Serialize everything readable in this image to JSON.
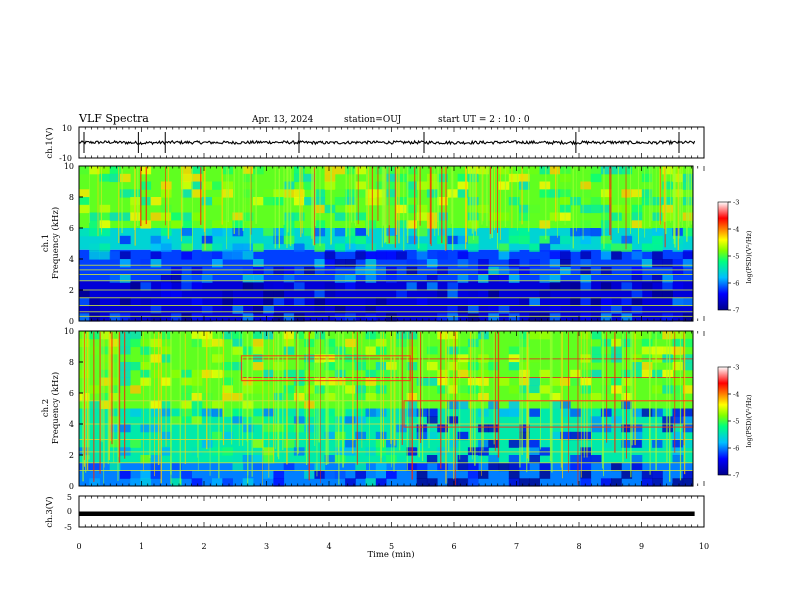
{
  "header": {
    "title": "VLF Spectra",
    "date": "Apr. 13, 2024",
    "station": "station=OUJ",
    "start_ut": "start  UT =   2  : 10 : 0"
  },
  "chart_data": [
    {
      "type": "line",
      "name": "ch1-waveform",
      "ylabel": "ch.1(V)",
      "ylim": [
        -10,
        10
      ],
      "yticks": [
        "10",
        "-10"
      ],
      "x": [
        0,
        0.5,
        1,
        1.5,
        2,
        2.5,
        3,
        3.5,
        4,
        4.5,
        5,
        5.5,
        6,
        6.5,
        7,
        7.5,
        8,
        8.5,
        9,
        9.5,
        9.85
      ],
      "y": [
        0,
        0.2,
        -0.3,
        0.1,
        0,
        -0.1,
        0.2,
        0,
        -0.2,
        0.1,
        0,
        0.1,
        -0.1,
        0,
        0.2,
        -0.1,
        0,
        0.1,
        -0.1,
        0,
        0
      ],
      "xlim": [
        0,
        10
      ]
    },
    {
      "type": "heatmap",
      "name": "ch1-spectrogram",
      "ylabel": "ch.1\nFrequency (kHz)",
      "ylim": [
        0,
        10
      ],
      "yticks": [
        "0",
        "2",
        "4",
        "6",
        "8",
        "10"
      ],
      "xlim": [
        0,
        10
      ],
      "colorbar": {
        "label": "log(PSD)(V²/Hz)",
        "range": [
          -7,
          -3
        ],
        "ticks": [
          "-3",
          "-4",
          "-5",
          "-6",
          "-7"
        ],
        "colors": [
          "#00008b",
          "#0000ff",
          "#00bfff",
          "#00ff7f",
          "#7fff00",
          "#ffff00",
          "#ff7f00",
          "#ff0000",
          "#ffffff"
        ]
      },
      "bands_khz": [
        {
          "from": 0,
          "to": 2.6,
          "level": -6.6
        },
        {
          "from": 2.6,
          "to": 4.6,
          "level": -6.2
        },
        {
          "from": 4.6,
          "to": 6.0,
          "level": -5.6
        },
        {
          "from": 6.0,
          "to": 10,
          "level": -4.9
        }
      ],
      "tone_lines_khz": [
        0.3,
        0.6,
        1.0,
        1.5,
        2.0,
        2.6,
        3.0,
        3.3,
        3.6
      ]
    },
    {
      "type": "heatmap",
      "name": "ch2-spectrogram",
      "ylabel": "ch.2\nFrequency (kHz)",
      "ylim": [
        0,
        10
      ],
      "yticks": [
        "0",
        "2",
        "4",
        "6",
        "8",
        "10"
      ],
      "xlim": [
        0,
        10
      ],
      "colorbar": {
        "label": "log(PSD)(V²/Hz)",
        "range": [
          -7,
          -3
        ],
        "ticks": [
          "-3",
          "-4",
          "-5",
          "-6",
          "-7"
        ],
        "colors": [
          "#00008b",
          "#0000ff",
          "#00bfff",
          "#00ff7f",
          "#7fff00",
          "#ffff00",
          "#ff7f00",
          "#ff0000",
          "#ffffff"
        ]
      },
      "bands_khz": [
        {
          "from": 0,
          "to": 1.5,
          "level": -6.0
        },
        {
          "from": 1.5,
          "to": 5.0,
          "level": -5.4
        },
        {
          "from": 5.0,
          "to": 10,
          "level": -4.9
        }
      ],
      "tone_lines_khz": [
        1.0,
        1.5,
        2.2,
        3.0,
        4.0,
        5.5,
        7.0,
        8.2
      ],
      "segment_change_min": [
        2.6,
        5.2
      ]
    },
    {
      "type": "line",
      "name": "ch3-waveform",
      "ylabel": "ch.3(V)",
      "ylim": [
        -5,
        5
      ],
      "yticks": [
        "5",
        "0",
        "-5"
      ],
      "x": [
        0,
        9.85
      ],
      "y": [
        -0.8,
        -0.8
      ],
      "xlim": [
        0,
        10
      ]
    }
  ],
  "xaxis": {
    "label": "Time (min)",
    "ticks": [
      "0",
      "1",
      "2",
      "3",
      "4",
      "5",
      "6",
      "7",
      "8",
      "9",
      "10"
    ],
    "range": [
      0,
      10
    ]
  }
}
